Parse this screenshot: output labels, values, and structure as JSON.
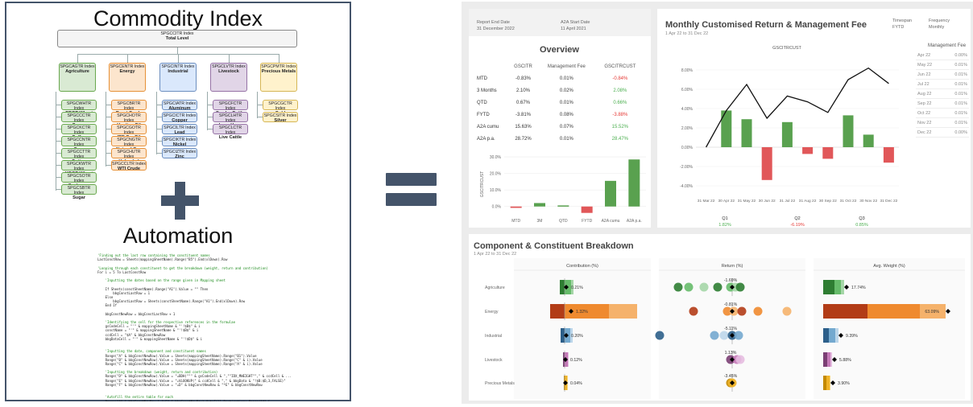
{
  "left": {
    "heading": "Commodity Index",
    "subheading": "Automation",
    "tree": {
      "root": {
        "code": "SPGCCITR Index",
        "name": "Total Level"
      },
      "groups": [
        {
          "code": "SPGCAGTR Index",
          "name": "Agriculture",
          "color": "#d9ead3",
          "border": "#6aa84f",
          "items": [
            [
              "SPGCWHTR Index",
              "CBOT Wheat"
            ],
            [
              "SPGCCCTR Index",
              "Cocoa"
            ],
            [
              "SPGCKCTR Index",
              "Coffee"
            ],
            [
              "SPGCCNTR Index",
              "Corn"
            ],
            [
              "SPGCCTTR Index",
              "Cotton"
            ],
            [
              "SPGCKWTR Index",
              "KBOT Wheat"
            ],
            [
              "SPGCSOTR Index",
              "Soybeans"
            ],
            [
              "SPGCSBTR Index",
              "Sugar"
            ]
          ]
        },
        {
          "code": "SPGCENTR Index",
          "name": "Energy",
          "color": "#fce5cd",
          "border": "#e69138",
          "items": [
            [
              "SPGCBRTR Index",
              "Brent Crude"
            ],
            [
              "SPGCHOTR Index",
              "Heating Oil"
            ],
            [
              "SPGCGOTR Index",
              "IPE GasOil"
            ],
            [
              "SPGCNGTR Index",
              "Natural Gas"
            ],
            [
              "SPGCHUTR Index",
              "Unleaded"
            ],
            [
              "SPGCCLTR Index",
              "WTI Crude"
            ]
          ]
        },
        {
          "code": "SPGCINTR Index",
          "name": "Industrial",
          "color": "#dae8fc",
          "border": "#6c8ebf",
          "items": [
            [
              "SPGCIATR Index",
              "Aluminum"
            ],
            [
              "SPGCICTR Index",
              "Copper"
            ],
            [
              "SPGCILTR Index",
              "Lead"
            ],
            [
              "SPGCIKTR Index",
              "Nickel"
            ],
            [
              "SPGCIZTR Index",
              "Zinc"
            ]
          ]
        },
        {
          "code": "SPGCLVTR Index",
          "name": "Livestock",
          "color": "#e1d5e7",
          "border": "#9673a6",
          "items": [
            [
              "SPGCFCTR Index",
              "Feeder Cattle"
            ],
            [
              "SPGCLHTR Index",
              "Lean Hogs"
            ],
            [
              "SPGCLCTR Index",
              "Live Cattle"
            ]
          ]
        },
        {
          "code": "SPGCPMTR Index",
          "name": "Precious Metals",
          "color": "#fff2cc",
          "border": "#d6b656",
          "items": [
            [
              "SPGCGCTR Index",
              "Gold"
            ],
            [
              "SPGCSITR Index",
              "Silver"
            ]
          ]
        }
      ]
    },
    "code_lines": [
      {
        "t": "'Finding out the last row containing the constituent names",
        "c": true
      },
      {
        "t": "LastConstRow = Sheets(mappingSheetName).Range(\"B5\").End(xlDown).Row",
        "c": false
      },
      {
        "t": "",
        "c": false
      },
      {
        "t": "'Looping through each constituent to get the breakdown (weight, return and contribution)",
        "c": true
      },
      {
        "t": "For i = 5 To LastConstRow",
        "c": false
      },
      {
        "t": "",
        "c": false
      },
      {
        "t": "    'Inputting the dates based on the range given in Mapping sheet",
        "c": true
      },
      {
        "t": "",
        "c": false
      },
      {
        "t": "    If Sheets(constSheetName).Range(\"A1\").Value = \"\" Then",
        "c": false
      },
      {
        "t": "        bbgConstLastRow = 1",
        "c": false
      },
      {
        "t": "    Else",
        "c": false
      },
      {
        "t": "        bbgConstLastRow = Sheets(constSheetName).Range(\"A1\").End(xlDown).Row",
        "c": false
      },
      {
        "t": "    End If",
        "c": false
      },
      {
        "t": "",
        "c": false
      },
      {
        "t": "    bbgConstNewRow = bbgConstLastRow + 1",
        "c": false
      },
      {
        "t": "",
        "c": false
      },
      {
        "t": "    'Identifying the cell for the respective references in the formulae",
        "c": true
      },
      {
        "t": "    gsCodeCell = \"'\" & mappingSheetName & \"'!$B$\" & i",
        "c": false
      },
      {
        "t": "    constName = \"'\" & mappingSheetName & \"'!$B$\" & i",
        "c": false
      },
      {
        "t": "    ccdCell = \"$A\" & bbgConstNewRow",
        "c": false
      },
      {
        "t": "    bbgDataCell = \"'\" & mappingSheetName & \"'!$D$\" & i",
        "c": false
      },
      {
        "t": "",
        "c": false
      },
      {
        "t": "",
        "c": false
      },
      {
        "t": "    'Inputting the date, component and constituent names",
        "c": true
      },
      {
        "t": "    Range(\"A\" & bbgConstNewRow).Value = Sheets(mappingSheetName).Range(\"B1\").Value",
        "c": false
      },
      {
        "t": "    Range(\"B\" & bbgConstNewRow).Value = Sheets(mappingSheetName).Range(\"C\" & i).Value",
        "c": false
      },
      {
        "t": "    Range(\"C\" & bbgConstNewRow).Value = Sheets(mappingSheetName).Range(\"A\" & i).Value",
        "c": false
      },
      {
        "t": "",
        "c": false
      },
      {
        "t": "    'Inputting the breakdown (weight, return and contribution)",
        "c": true
      },
      {
        "t": "    Range(\"D\" & bbgConstNewRow).Value = \"=BDH(\"\"\" & gsCodeCell & \",\"\"IDX_MWEIGHT\"\",\" & ccdCell & ...",
        "c": false
      },
      {
        "t": "    Range(\"E\" & bbgConstNewRow).Value = \"=VLOOKUP(\" & ccdCell & \",\" & bbgData & \"!$B:$D,3,FALSE)\"",
        "c": false
      },
      {
        "t": "    Range(\"F\" & bbgConstNewRow).Value = \"=D\" & bbgConstNewRow & \"*E\" & bbgConstNewRow",
        "c": false
      },
      {
        "t": "",
        "c": false
      },
      {
        "t": "",
        "c": false
      },
      {
        "t": "    'Autofill the entire table for each",
        "c": true
      },
      {
        "t": "    Range(\"A\" & bbgConstNewRow & \":F\" & bbgConstNewRow).AutoFill Destination:=Range(\"A\" & ...",
        "c": false
      }
    ]
  },
  "dashboard": {
    "overview": {
      "report_end_label": "Report End Date",
      "report_end_value": "31 December 2022",
      "start_label": "A2A Start Date",
      "start_value": "11 April 2021",
      "title": "Overview",
      "columns": [
        "GSCITR",
        "Management Fee",
        "GSCITRCUST"
      ],
      "rows": [
        {
          "label": "MTD",
          "v": [
            "-0.83%",
            "0.01%",
            "-0.84%"
          ],
          "cls": [
            "",
            "",
            "neg"
          ]
        },
        {
          "label": "3 Months",
          "v": [
            "2.10%",
            "0.02%",
            "2.08%"
          ],
          "cls": [
            "",
            "",
            "pos"
          ]
        },
        {
          "label": "QTD",
          "v": [
            "0.67%",
            "0.01%",
            "0.66%"
          ],
          "cls": [
            "",
            "",
            "pos"
          ]
        },
        {
          "label": "FYTD",
          "v": [
            "-3.81%",
            "0.08%",
            "-3.88%"
          ],
          "cls": [
            "",
            "",
            "neg"
          ]
        },
        {
          "label": "A2A cumu",
          "v": [
            "15.63%",
            "0.07%",
            "15.52%"
          ],
          "cls": [
            "",
            "",
            "pos"
          ]
        },
        {
          "label": "A2A p.a.",
          "v": [
            "28.72%",
            "0.01%",
            "28.47%"
          ],
          "cls": [
            "",
            "",
            "pos"
          ]
        }
      ],
      "bar_axis_label": "GSCITRCUST",
      "bar_ticks": [
        "30.0%",
        "20.0%",
        "10.0%",
        "0.0%"
      ],
      "bar_categories": [
        "MTD",
        "3M",
        "QTD",
        "FYTD",
        "A2A cumu",
        "A2A p.a."
      ]
    },
    "monthly": {
      "title": "Monthly Customised Return & Management Fee",
      "subtitle": "1 Apr 22 to 31 Dec 22",
      "timespan_label": "Timespan",
      "timespan_value": "FYTD",
      "frequency_label": "Frequency",
      "frequency_value": "Monthly",
      "series_label": "GSCITRCUST",
      "y_ticks": [
        "8.00%",
        "6.00%",
        "4.00%",
        "2.00%",
        "0.00%",
        "-2.00%",
        "-4.00%"
      ],
      "x_ticks": [
        "31 Mar 22",
        "30 Apr 22",
        "31 May 22",
        "30 Jun 22",
        "31 Jul 22",
        "31 Aug 22",
        "30 Sep 22",
        "31 Oct 22",
        "30 Nov 22",
        "31 Dec 22"
      ],
      "quarters": [
        {
          "label": "Q1",
          "value": "1.82%",
          "cls": "pos"
        },
        {
          "label": "Q2",
          "value": "-6.19%",
          "cls": "neg"
        },
        {
          "label": "Q3",
          "value": "0.85%",
          "cls": "pos"
        }
      ],
      "mgmt_fee_title": "Management Fee",
      "mgmt_fee": [
        [
          "Apr 22",
          "0.00%"
        ],
        [
          "May 22",
          "0.01%"
        ],
        [
          "Jun 22",
          "0.01%"
        ],
        [
          "Jul 22",
          "0.01%"
        ],
        [
          "Aug 22",
          "0.01%"
        ],
        [
          "Sep 22",
          "0.01%"
        ],
        [
          "Oct 22",
          "0.01%"
        ],
        [
          "Nov 22",
          "0.01%"
        ],
        [
          "Dec 22",
          "0.00%"
        ]
      ]
    },
    "breakdown": {
      "title": "Component & Constituent Breakdown",
      "subtitle": "1 Apr 22 to 31 Dec 22",
      "headers": [
        "Contribution (%)",
        "Return (%)",
        "Avg. Weight (%)"
      ],
      "components": [
        "Agriculture",
        "Energy",
        "Industrial",
        "Livestock",
        "Precious Metals"
      ],
      "contribution_labels": [
        "0.21%",
        "1.32%",
        "0.20%",
        "0.12%",
        "0.04%"
      ],
      "return_labels": [
        "-1.69%",
        "-0.81%",
        "-5.11%",
        "1.13%",
        "-3.45%"
      ],
      "weight_labels": [
        "17.74%",
        "63.09%",
        "9.39%",
        "5.88%",
        "3.90%"
      ]
    }
  },
  "chart_data": [
    {
      "type": "bar",
      "title": "",
      "ylabel": "GSCITRCUST",
      "categories": [
        "MTD",
        "3M",
        "QTD",
        "FYTD",
        "A2A cumu",
        "A2A p.a."
      ],
      "values": [
        -0.84,
        2.08,
        0.66,
        -3.88,
        15.52,
        28.47
      ],
      "ylim": [
        -5,
        32
      ]
    },
    {
      "type": "bar",
      "title": "Monthly Customised Return & Management Fee",
      "categories": [
        "31 Mar 22",
        "30 Apr 22",
        "31 May 22",
        "30 Jun 22",
        "31 Jul 22",
        "31 Aug 22",
        "30 Sep 22",
        "31 Oct 22",
        "30 Nov 22",
        "31 Dec 22"
      ],
      "series": [
        {
          "name": "GSCITRCUST",
          "values": [
            0,
            3.8,
            2.9,
            -3.4,
            2.6,
            -0.7,
            -1.2,
            3.3,
            1.3,
            -1.6
          ]
        }
      ],
      "line": [
        0,
        3.8,
        6.5,
        3.0,
        5.3,
        4.7,
        3.6,
        7.0,
        8.2,
        6.6
      ],
      "ylim": [
        -5,
        9
      ]
    }
  ]
}
